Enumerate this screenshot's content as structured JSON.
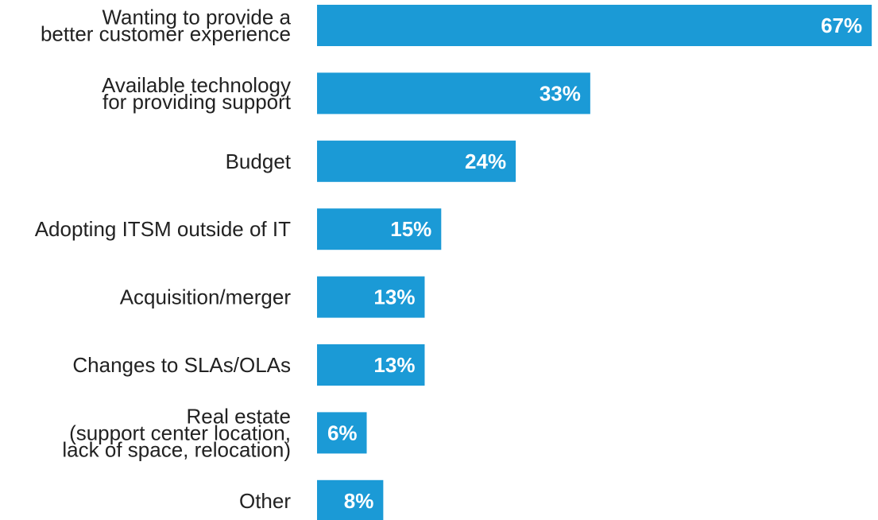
{
  "chart_data": {
    "type": "bar",
    "orientation": "horizontal",
    "categories": [
      [
        "Wanting to provide a",
        "better customer experience"
      ],
      [
        "Available technology",
        "for providing support"
      ],
      [
        "Budget"
      ],
      [
        "Adopting ITSM outside of IT"
      ],
      [
        "Acquisition/merger"
      ],
      [
        "Changes to SLAs/OLAs"
      ],
      [
        "Real estate",
        "(support center location,",
        "lack of space, relocation)"
      ],
      [
        "Other"
      ]
    ],
    "values": [
      67,
      33,
      24,
      15,
      13,
      13,
      6,
      8
    ],
    "value_labels": [
      "67%",
      "33%",
      "24%",
      "15%",
      "13%",
      "13%",
      "6%",
      "8%"
    ],
    "bar_color": "#1b9ad6",
    "label_color": "#222222",
    "value_label_color": "#ffffff",
    "grid": false,
    "title": "",
    "xlabel": "",
    "ylabel": ""
  }
}
